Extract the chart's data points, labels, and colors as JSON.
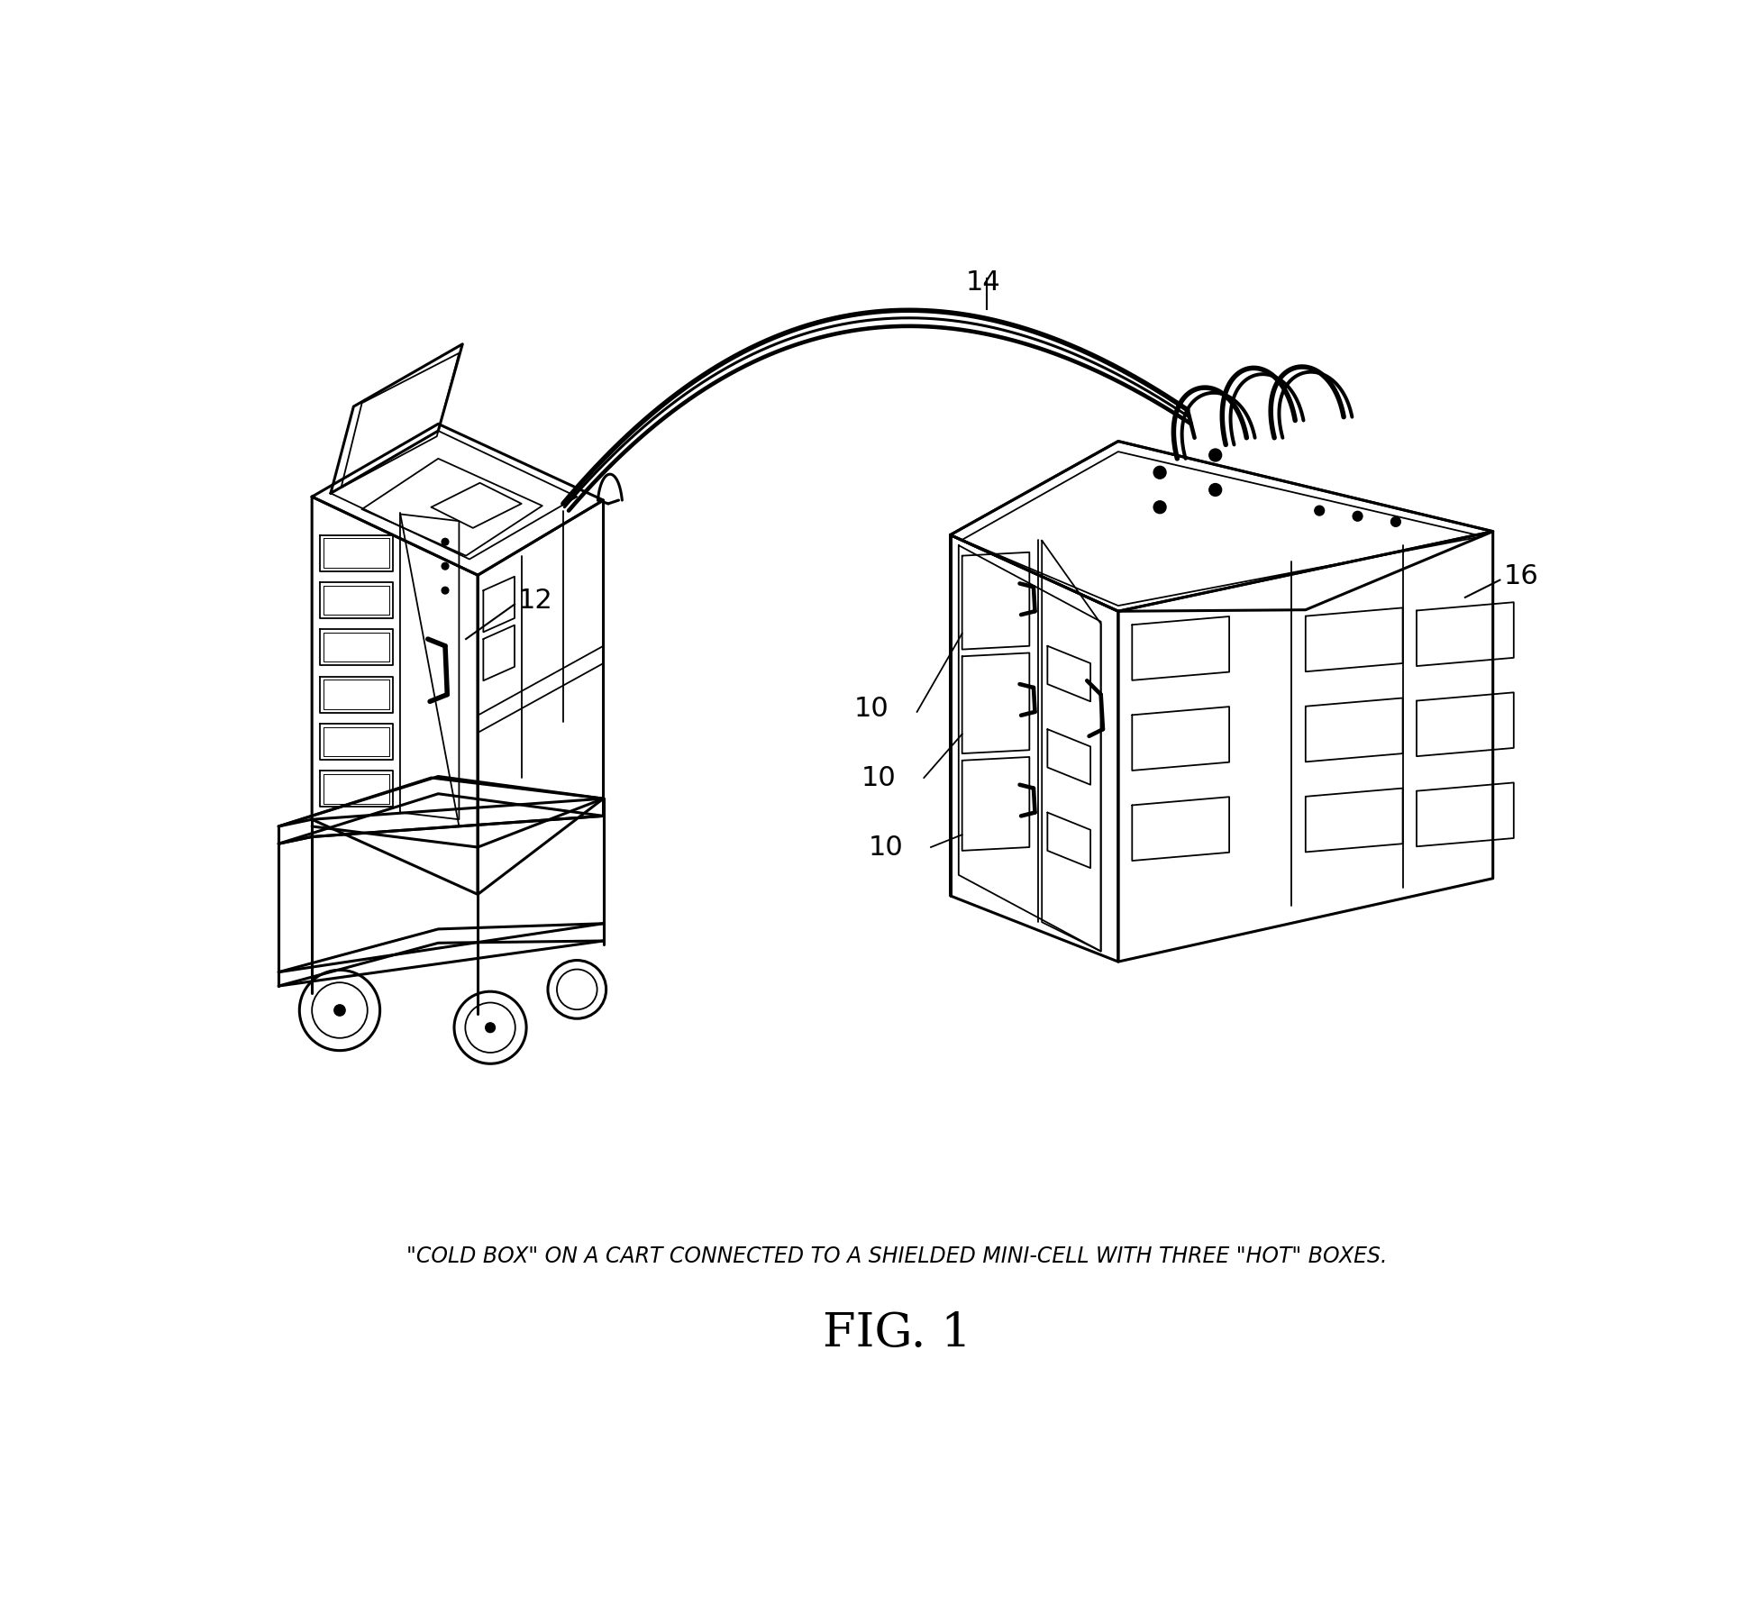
{
  "title": "FIG. 1",
  "caption": "\"COLD BOX\" ON A CART CONNECTED TO A SHIELDED MINI-CELL WITH THREE \"HOT\" BOXES.",
  "label_12": "12",
  "label_14": "14",
  "label_16": "16",
  "label_10a": "10",
  "label_10b": "10",
  "label_10c": "10",
  "bg_color": "#ffffff",
  "line_color": "#000000",
  "lw": 2.2,
  "tlw": 1.3,
  "title_fontsize": 38,
  "caption_fontsize": 17,
  "label_fontsize": 22
}
